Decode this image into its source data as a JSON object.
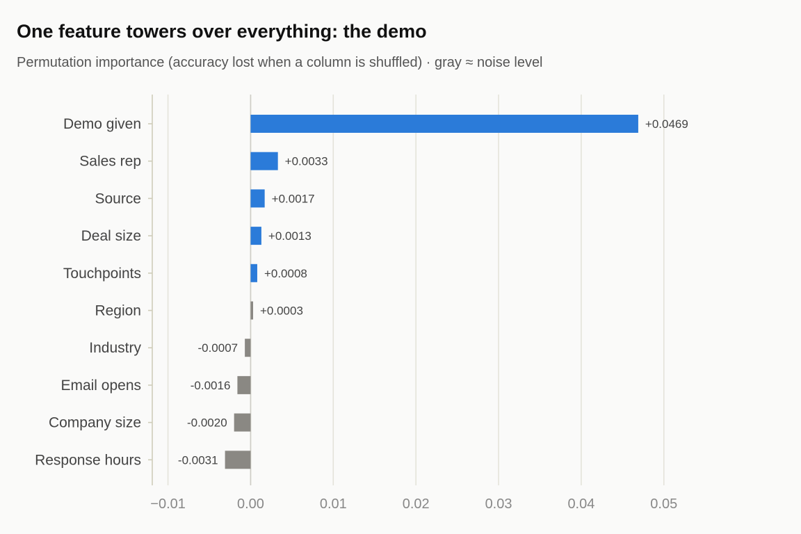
{
  "title": "One feature towers over everything: the demo",
  "subtitle": "Permutation importance (accuracy lost when a column is shuffled) · gray ≈ noise level",
  "chart_data": {
    "type": "bar",
    "orientation": "horizontal",
    "categories": [
      "Demo given",
      "Sales rep",
      "Source",
      "Deal size",
      "Touchpoints",
      "Region",
      "Industry",
      "Email opens",
      "Company size",
      "Response hours"
    ],
    "values": [
      0.0469,
      0.0033,
      0.0017,
      0.0013,
      0.0008,
      0.0003,
      -0.0007,
      -0.0016,
      -0.002,
      -0.0031
    ],
    "value_labels": [
      "+0.0469",
      "+0.0033",
      "+0.0017",
      "+0.0013",
      "+0.0008",
      "+0.0003",
      "-0.0007",
      "-0.0016",
      "-0.0020",
      "-0.0031"
    ],
    "bar_colors": [
      "#2b7bd9",
      "#2b7bd9",
      "#2b7bd9",
      "#2b7bd9",
      "#2b7bd9",
      "#8a8883",
      "#8a8883",
      "#8a8883",
      "#8a8883",
      "#8a8883"
    ],
    "xticks": [
      -0.01,
      0.0,
      0.01,
      0.02,
      0.03,
      0.04,
      0.05
    ],
    "xtick_labels": [
      "−0.01",
      "0.00",
      "0.01",
      "0.02",
      "0.03",
      "0.04",
      "0.05"
    ],
    "xlim": [
      -0.0119,
      0.0586
    ],
    "xlabel": "",
    "ylabel": "",
    "grid": "vertical",
    "colors": {
      "positive": "#2b7bd9",
      "noise": "#8a8883",
      "grid": "#e4e3da",
      "axis": "#cfcdb9"
    }
  }
}
